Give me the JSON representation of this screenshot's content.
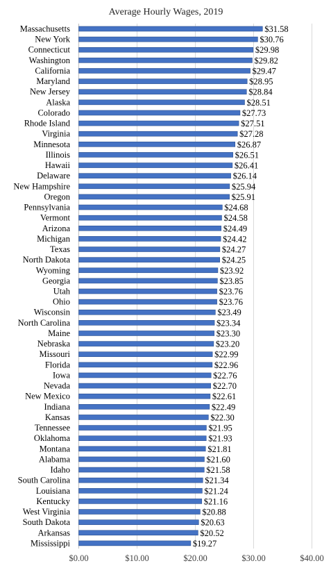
{
  "chart_data": {
    "type": "bar",
    "orientation": "horizontal",
    "title": "Average Hourly Wages, 2019",
    "xlabel": "",
    "ylabel": "",
    "xlim": [
      0,
      40
    ],
    "x_ticks": [
      "$0.00",
      "$10.00",
      "$20.00",
      "$30.00",
      "$40.00"
    ],
    "x_tick_values": [
      0,
      10,
      20,
      30,
      40
    ],
    "grid": true,
    "legend": "none",
    "bar_color": "#4472C4",
    "bar_edge_color": "#2F528F",
    "categories": [
      "Massachusetts",
      "New York",
      "Connecticut",
      "Washington",
      "California",
      "Maryland",
      "New Jersey",
      "Alaska",
      "Colorado",
      "Rhode Island",
      "Virginia",
      "Minnesota",
      "Illinois",
      "Hawaii",
      "Delaware",
      "New Hampshire",
      "Oregon",
      "Pennsylvania",
      "Vermont",
      "Arizona",
      "Michigan",
      "Texas",
      "North Dakota",
      "Wyoming",
      "Georgia",
      "Utah",
      "Ohio",
      "Wisconsin",
      "North Carolina",
      "Maine",
      "Nebraska",
      "Missouri",
      "Florida",
      "Iowa",
      "Nevada",
      "New Mexico",
      "Indiana",
      "Kansas",
      "Tennessee",
      "Oklahoma",
      "Montana",
      "Alabama",
      "Idaho",
      "South Carolina",
      "Louisiana",
      "Kentucky",
      "West Virginia",
      "South Dakota",
      "Arkansas",
      "Mississippi"
    ],
    "values": [
      31.58,
      30.76,
      29.98,
      29.82,
      29.47,
      28.95,
      28.84,
      28.51,
      27.73,
      27.51,
      27.28,
      26.87,
      26.51,
      26.41,
      26.14,
      25.94,
      25.91,
      24.68,
      24.58,
      24.49,
      24.42,
      24.27,
      24.25,
      23.92,
      23.85,
      23.76,
      23.76,
      23.49,
      23.34,
      23.3,
      23.2,
      22.99,
      22.96,
      22.76,
      22.7,
      22.61,
      22.49,
      22.3,
      21.95,
      21.93,
      21.81,
      21.6,
      21.58,
      21.34,
      21.24,
      21.16,
      20.88,
      20.63,
      20.52,
      19.27
    ],
    "value_labels": [
      "$31.58",
      "$30.76",
      "$29.98",
      "$29.82",
      "$29.47",
      "$28.95",
      "$28.84",
      "$28.51",
      "$27.73",
      "$27.51",
      "$27.28",
      "$26.87",
      "$26.51",
      "$26.41",
      "$26.14",
      "$25.94",
      "$25.91",
      "$24.68",
      "$24.58",
      "$24.49",
      "$24.42",
      "$24.27",
      "$24.25",
      "$23.92",
      "$23.85",
      "$23.76",
      "$23.76",
      "$23.49",
      "$23.34",
      "$23.30",
      "$23.20",
      "$22.99",
      "$22.96",
      "$22.76",
      "$22.70",
      "$22.61",
      "$22.49",
      "$22.30",
      "$21.95",
      "$21.93",
      "$21.81",
      "$21.60",
      "$21.58",
      "$21.34",
      "$21.24",
      "$21.16",
      "$20.88",
      "$20.63",
      "$20.52",
      "$19.27"
    ]
  }
}
